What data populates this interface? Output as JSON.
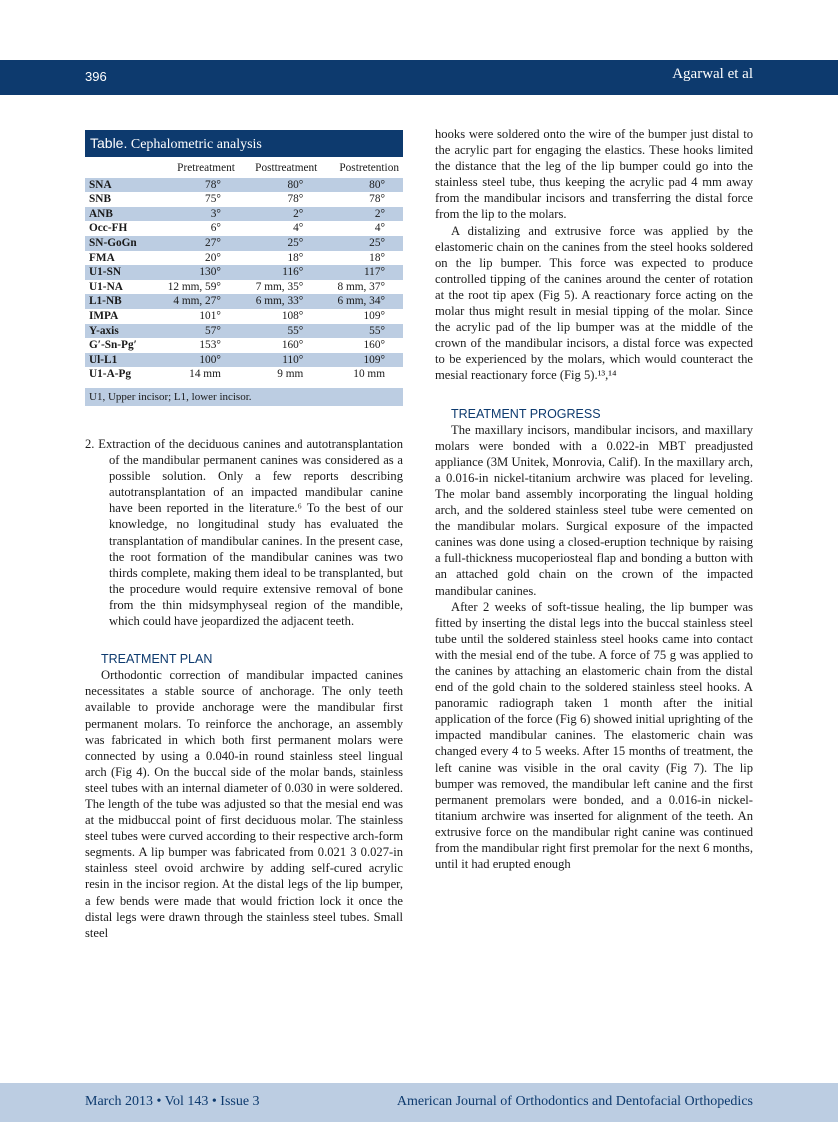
{
  "header": {
    "page_number": "396",
    "authors": "Agarwal et al"
  },
  "footer": {
    "issue": "March 2013 • Vol 143 • Issue 3",
    "journal": "American Journal of Orthodontics and Dentofacial Orthopedics"
  },
  "table": {
    "label": "Table.",
    "title": "Cephalometric analysis",
    "columns": [
      "",
      "Pretreatment",
      "Posttreatment",
      "Postretention"
    ],
    "rows": [
      [
        "SNA",
        "78°",
        "80°",
        "80°"
      ],
      [
        "SNB",
        "75°",
        "78°",
        "78°"
      ],
      [
        "ANB",
        "3°",
        "2°",
        "2°"
      ],
      [
        "Occ-FH",
        "6°",
        "4°",
        "4°"
      ],
      [
        "SN-GoGn",
        "27°",
        "25°",
        "25°"
      ],
      [
        "FMA",
        "20°",
        "18°",
        "18°"
      ],
      [
        "U1-SN",
        "130°",
        "116°",
        "117°"
      ],
      [
        "U1-NA",
        "12 mm, 59°",
        "7 mm, 35°",
        "8 mm, 37°"
      ],
      [
        "L1-NB",
        "4 mm, 27°",
        "6 mm, 33°",
        "6 mm, 34°"
      ],
      [
        "IMPA",
        "101°",
        "108°",
        "109°"
      ],
      [
        "Y-axis",
        "57°",
        "55°",
        "55°"
      ],
      [
        "G′-Sn-Pg′",
        "153°",
        "160°",
        "160°"
      ],
      [
        "Ul-L1",
        "100°",
        "110°",
        "109°"
      ],
      [
        "U1-A-Pg",
        "14 mm",
        "9 mm",
        "10 mm"
      ]
    ],
    "footnote": "U1, Upper incisor; L1, lower incisor."
  },
  "left": {
    "item2": "2.  Extraction of the deciduous canines and autotransplantation of the mandibular permanent canines was considered as a possible solution. Only a few reports describing autotransplantation of an impacted mandibular canine have been reported in the literature.⁶ To the best of our knowledge, no longitudinal study has evaluated the transplantation of mandibular canines. In the present case, the root formation of the mandibular canines was two thirds complete, making them ideal to be transplanted, but the procedure would require extensive removal of bone from the thin midsymphyseal region of the mandible, which could have jeopardized the adjacent teeth.",
    "heading": "TREATMENT PLAN",
    "p1": "Orthodontic correction of mandibular impacted canines necessitates a stable source of anchorage. The only teeth available to provide anchorage were the mandibular first permanent molars. To reinforce the anchorage, an assembly was fabricated in which both first permanent molars were connected by using a 0.040-in round stainless steel lingual arch (Fig 4). On the buccal side of the molar bands, stainless steel tubes with an internal diameter of 0.030 in were soldered. The length of the tube was adjusted so that the mesial end was at the midbuccal point of first deciduous molar. The stainless steel tubes were curved according to their respective arch-form segments. A lip bumper was fabricated from 0.021 3 0.027-in stainless steel ovoid archwire by adding self-cured acrylic resin in the incisor region. At the distal legs of the lip bumper, a few bends were made that would friction lock it once the distal legs were drawn through the stainless steel tubes. Small steel"
  },
  "right": {
    "p0": "hooks were soldered onto the wire of the bumper just distal to the acrylic part for engaging the elastics. These hooks limited the distance that the leg of the lip bumper could go into the stainless steel tube, thus keeping the acrylic pad 4 mm away from the mandibular incisors and transferring the distal force from the lip to the molars.",
    "p1": "A distalizing and extrusive force was applied by the elastomeric chain on the canines from the steel hooks soldered on the lip bumper. This force was expected to produce controlled tipping of the canines around the center of rotation at the root tip apex (Fig 5). A reactionary force acting on the molar thus might result in mesial tipping of the molar. Since the acrylic pad of the lip bumper was at the middle of the crown of the mandibular incisors, a distal force was expected to be experienced by the molars, which would counteract the mesial reactionary force (Fig 5).¹³,¹⁴",
    "heading": "TREATMENT PROGRESS",
    "p2": "The maxillary incisors, mandibular incisors, and maxillary molars were bonded with a 0.022-in MBT preadjusted appliance (3M Unitek, Monrovia, Calif). In the maxillary arch, a 0.016-in nickel-titanium archwire was placed for leveling. The molar band assembly incorporating the lingual holding arch, and the soldered stainless steel tube were cemented on the mandibular molars. Surgical exposure of the impacted canines was done using a closed-eruption technique by raising a full-thickness mucoperiosteal flap and bonding a button with an attached gold chain on the crown of the impacted mandibular canines.",
    "p3": "After 2 weeks of soft-tissue healing, the lip bumper was fitted by inserting the distal legs into the buccal stainless steel tube until the soldered stainless steel hooks came into contact with the mesial end of the tube. A force of 75 g was applied to the canines by attaching an elastomeric chain from the distal end of the gold chain to the soldered stainless steel hooks. A panoramic radiograph taken 1 month after the initial application of the force (Fig 6) showed initial uprighting of the impacted mandibular canines. The elastomeric chain was changed every 4 to 5 weeks. After 15 months of treatment, the left canine was visible in the oral cavity (Fig 7). The lip bumper was removed, the mandibular left canine and the first permanent premolars were bonded, and a 0.016-in nickel-titanium archwire was inserted for alignment of the teeth. An extrusive force on the mandibular right canine was continued from the mandibular right first premolar for the next 6 months, until it had erupted enough"
  },
  "colors": {
    "brand": "#0d3a6e",
    "shade": "#bccde2"
  }
}
